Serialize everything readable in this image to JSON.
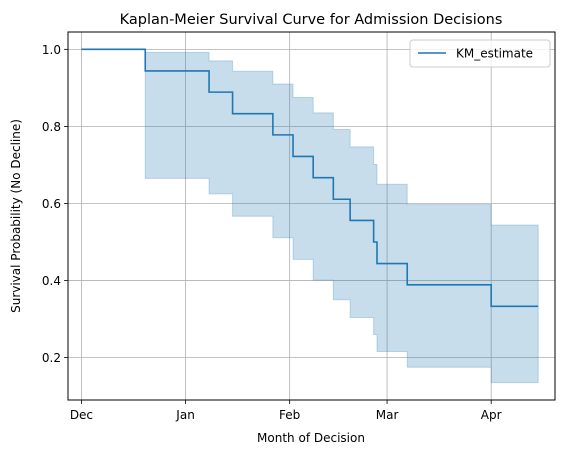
{
  "chart_data": {
    "type": "line",
    "step": true,
    "title": "Kaplan-Meier Survival Curve for Admission Decisions",
    "xlabel": "Month of Decision",
    "ylabel": "Survival Probability (No Decline)",
    "x_ticks": [
      {
        "date": "2023-12-01",
        "label": "Dec"
      },
      {
        "date": "2024-01-01",
        "label": "Jan"
      },
      {
        "date": "2024-02-01",
        "label": "Feb"
      },
      {
        "date": "2024-03-01",
        "label": "Mar"
      },
      {
        "date": "2024-04-01",
        "label": "Apr"
      }
    ],
    "xlim": [
      "2023-11-27",
      "2024-04-20"
    ],
    "y_ticks": [
      0.2,
      0.4,
      0.6,
      0.8,
      1.0
    ],
    "y_tick_labels": [
      "0.2",
      "0.4",
      "0.6",
      "0.8",
      "1.0"
    ],
    "ylim": [
      0.09,
      1.045
    ],
    "grid": true,
    "legend": "top-right",
    "colors": {
      "line": "#1f77b4",
      "band": "#1f77b4",
      "grid": "#b0b0b0"
    },
    "series": [
      {
        "name": "KM_estimate",
        "x": [
          "2023-12-01",
          "2023-12-20",
          "2024-01-08",
          "2024-01-15",
          "2024-01-27",
          "2024-02-02",
          "2024-02-08",
          "2024-02-14",
          "2024-02-19",
          "2024-02-26",
          "2024-02-27",
          "2024-03-07",
          "2024-04-01",
          "2024-04-15"
        ],
        "y": [
          1.0,
          0.944,
          0.889,
          0.833,
          0.778,
          0.722,
          0.667,
          0.611,
          0.556,
          0.5,
          0.444,
          0.389,
          0.333,
          0.333
        ],
        "ci_lower": [
          1.0,
          0.665,
          0.625,
          0.567,
          0.511,
          0.455,
          0.401,
          0.35,
          0.304,
          0.26,
          0.216,
          0.175,
          0.135,
          0.135
        ],
        "ci_upper": [
          1.0,
          0.992,
          0.97,
          0.943,
          0.91,
          0.875,
          0.835,
          0.792,
          0.747,
          0.701,
          0.65,
          0.597,
          0.544,
          0.544
        ]
      }
    ]
  }
}
